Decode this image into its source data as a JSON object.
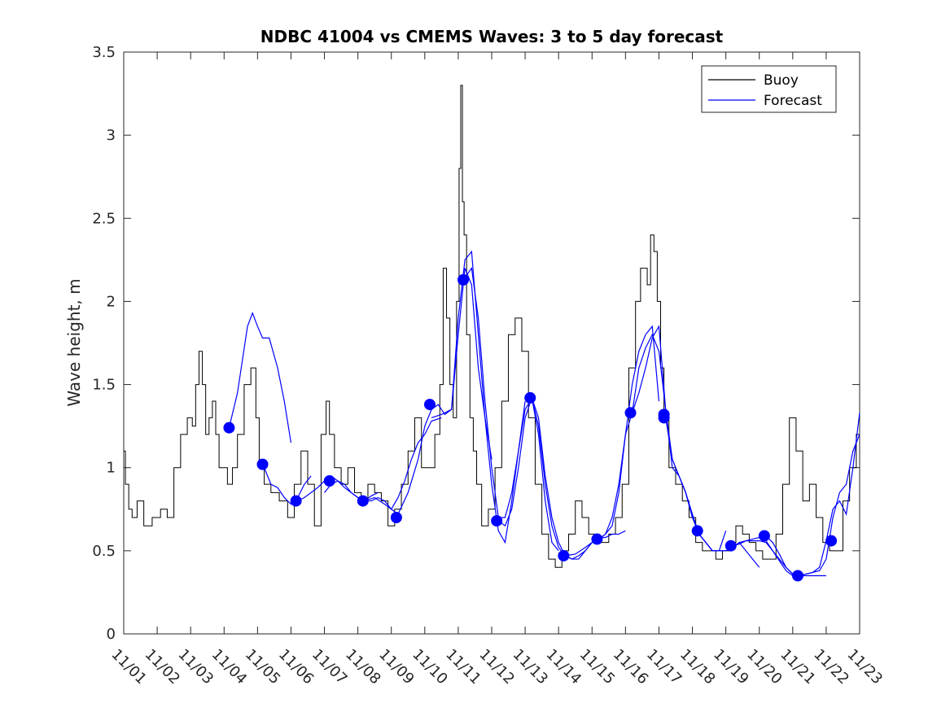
{
  "chart_data": {
    "type": "line",
    "title": "NDBC 41004 vs CMEMS Waves: 3 to 5 day forecast",
    "xlabel": "",
    "ylabel": "Wave height, m",
    "xlim": [
      "11/01",
      "11/23"
    ],
    "ylim": [
      0,
      3.5
    ],
    "x_tick_labels": [
      "11/01",
      "11/02",
      "11/03",
      "11/04",
      "11/05",
      "11/06",
      "11/07",
      "11/08",
      "11/09",
      "11/10",
      "11/11",
      "11/12",
      "11/13",
      "11/14",
      "11/15",
      "11/16",
      "11/17",
      "11/18",
      "11/19",
      "11/20",
      "11/21",
      "11/22",
      "11/23"
    ],
    "y_ticks": [
      0,
      0.5,
      1,
      1.5,
      2,
      2.5,
      3,
      3.5
    ],
    "y_tick_labels": [
      "0",
      "0.5",
      "1",
      "1.5",
      "2",
      "2.5",
      "3",
      "3.5"
    ],
    "grid": false,
    "legend": {
      "position": "top-right",
      "entries": [
        "Buoy",
        "Forecast"
      ]
    },
    "colors": {
      "buoy": "#000000",
      "forecast": "#0000ff",
      "markers": "#0000ff"
    },
    "series": [
      {
        "name": "Buoy",
        "x_unit": "day of month (Nov)",
        "x": [
          1.0,
          1.1,
          1.2,
          1.3,
          1.5,
          1.7,
          2.0,
          2.2,
          2.4,
          2.6,
          2.8,
          3.0,
          3.1,
          3.2,
          3.3,
          3.4,
          3.5,
          3.6,
          3.7,
          3.8,
          3.9,
          4.0,
          4.2,
          4.3,
          4.5,
          4.7,
          4.9,
          5.0,
          5.1,
          5.3,
          5.5,
          5.8,
          6.0,
          6.2,
          6.4,
          6.6,
          6.8,
          7.0,
          7.1,
          7.2,
          7.4,
          7.6,
          7.8,
          8.0,
          8.2,
          8.4,
          8.6,
          8.8,
          9.0,
          9.2,
          9.4,
          9.6,
          9.8,
          10.0,
          10.2,
          10.4,
          10.5,
          10.6,
          10.7,
          10.8,
          10.9,
          11.0,
          11.05,
          11.1,
          11.15,
          11.2,
          11.3,
          11.4,
          11.5,
          11.6,
          11.8,
          12.0,
          12.2,
          12.4,
          12.6,
          12.8,
          13.0,
          13.2,
          13.4,
          13.6,
          13.8,
          14.0,
          14.2,
          14.4,
          14.6,
          14.8,
          15.0,
          15.2,
          15.4,
          15.6,
          15.8,
          16.0,
          16.2,
          16.4,
          16.5,
          16.6,
          16.7,
          16.8,
          16.9,
          17.0,
          17.1,
          17.2,
          17.4,
          17.6,
          17.8,
          18.0,
          18.2,
          18.4,
          18.6,
          18.8,
          19.0,
          19.2,
          19.4,
          19.6,
          19.8,
          20.0,
          20.2,
          20.4,
          20.6,
          20.8,
          21.0,
          21.2,
          21.4,
          21.6,
          21.8,
          22.0,
          22.2,
          22.4,
          22.6,
          22.8,
          23.0
        ],
        "values": [
          1.1,
          0.9,
          0.75,
          0.7,
          0.8,
          0.65,
          0.7,
          0.75,
          0.7,
          1.0,
          1.2,
          1.3,
          1.25,
          1.5,
          1.7,
          1.5,
          1.2,
          1.3,
          1.4,
          1.2,
          1.0,
          1.0,
          0.9,
          1.0,
          1.2,
          1.5,
          1.6,
          1.3,
          1.0,
          0.9,
          0.85,
          0.8,
          0.7,
          0.9,
          1.1,
          0.9,
          0.65,
          1.2,
          1.4,
          1.2,
          1.0,
          0.9,
          1.0,
          0.85,
          0.8,
          0.9,
          0.85,
          0.8,
          0.65,
          0.75,
          0.9,
          1.1,
          1.3,
          1.0,
          1.0,
          1.2,
          1.5,
          2.2,
          1.9,
          1.5,
          1.3,
          2.0,
          2.8,
          3.3,
          2.6,
          2.4,
          1.8,
          1.3,
          1.1,
          0.9,
          0.65,
          0.75,
          1.0,
          1.4,
          1.8,
          1.9,
          1.7,
          1.3,
          0.9,
          0.6,
          0.45,
          0.4,
          0.5,
          0.6,
          0.8,
          0.7,
          0.6,
          0.55,
          0.55,
          0.6,
          0.7,
          0.9,
          1.6,
          2.0,
          2.2,
          2.2,
          2.1,
          2.4,
          2.3,
          2.0,
          1.6,
          1.3,
          1.0,
          0.9,
          0.8,
          0.7,
          0.55,
          0.5,
          0.5,
          0.45,
          0.5,
          0.55,
          0.65,
          0.6,
          0.55,
          0.5,
          0.45,
          0.45,
          0.6,
          0.9,
          1.3,
          1.1,
          0.8,
          0.9,
          0.7,
          0.55,
          0.5,
          0.5,
          0.8,
          1.0,
          1.2
        ]
      },
      {
        "name": "Forecast",
        "segments": [
          {
            "x": [
              4.15,
              4.4,
              4.7,
              4.85,
              5.0,
              5.15,
              5.35,
              5.6,
              5.8,
              6.0
            ],
            "values": [
              1.24,
              1.45,
              1.85,
              1.93,
              1.85,
              1.78,
              1.78,
              1.6,
              1.4,
              1.15
            ]
          },
          {
            "x": [
              5.2,
              5.4,
              5.6,
              5.8,
              6.0,
              6.15,
              6.4,
              6.6
            ],
            "values": [
              1.0,
              0.9,
              0.88,
              0.82,
              0.78,
              0.8,
              0.9,
              0.95
            ]
          },
          {
            "x": [
              6.2,
              6.4,
              6.6,
              6.8,
              7.0,
              7.2,
              7.4,
              7.6,
              7.8,
              8.0,
              8.2,
              8.4,
              8.6
            ],
            "values": [
              0.8,
              0.82,
              0.85,
              0.88,
              0.92,
              0.95,
              0.92,
              0.88,
              0.85,
              0.82,
              0.8,
              0.83,
              0.85
            ]
          },
          {
            "x": [
              7.0,
              7.2,
              7.4,
              7.6,
              7.8,
              8.0,
              8.2,
              8.4,
              8.6,
              8.8,
              9.0,
              9.2
            ],
            "values": [
              0.85,
              0.9,
              0.92,
              0.9,
              0.85,
              0.82,
              0.8,
              0.8,
              0.82,
              0.8,
              0.75,
              0.72
            ]
          },
          {
            "x": [
              8.2,
              8.5,
              8.8,
              9.0,
              9.2,
              9.4,
              9.6,
              9.8,
              10.0,
              10.2,
              10.5
            ],
            "values": [
              0.8,
              0.82,
              0.78,
              0.75,
              0.82,
              0.92,
              1.05,
              1.15,
              1.2,
              1.28,
              1.3
            ]
          },
          {
            "x": [
              9.2,
              9.5,
              9.8,
              10.0,
              10.2,
              10.4,
              10.6,
              10.8,
              11.0,
              11.2,
              11.4,
              11.6,
              11.8,
              12.0
            ],
            "values": [
              0.72,
              0.85,
              1.05,
              1.25,
              1.35,
              1.38,
              1.32,
              1.35,
              1.8,
              2.2,
              2.1,
              1.6,
              1.3,
              1.05
            ]
          },
          {
            "x": [
              10.2,
              10.5,
              10.8,
              11.0,
              11.2,
              11.4,
              11.6,
              11.8,
              12.0,
              12.2,
              12.4,
              12.6,
              12.8,
              13.0
            ],
            "values": [
              1.3,
              1.32,
              1.35,
              1.9,
              2.25,
              2.3,
              1.8,
              1.3,
              0.9,
              0.62,
              0.55,
              0.8,
              1.1,
              1.4
            ]
          },
          {
            "x": [
              11.15,
              11.4,
              11.6,
              11.8,
              12.0,
              12.2,
              12.4,
              12.6,
              12.8,
              13.0,
              13.2,
              13.4,
              13.6,
              13.8,
              14.0
            ],
            "values": [
              2.13,
              2.2,
              1.9,
              1.4,
              1.0,
              0.7,
              0.7,
              0.85,
              1.1,
              1.35,
              1.42,
              1.2,
              0.8,
              0.55,
              0.5
            ]
          },
          {
            "x": [
              12.2,
              12.4,
              12.6,
              12.8,
              13.0,
              13.2,
              13.4,
              13.6,
              13.8,
              14.0,
              14.2,
              14.4,
              14.6,
              14.8,
              15.0
            ],
            "values": [
              0.68,
              0.65,
              0.75,
              1.0,
              1.3,
              1.42,
              1.25,
              0.9,
              0.65,
              0.52,
              0.47,
              0.45,
              0.47,
              0.5,
              0.55
            ]
          },
          {
            "x": [
              13.2,
              13.4,
              13.6,
              13.8,
              14.0,
              14.2,
              14.4,
              14.6,
              14.8,
              15.0,
              15.2,
              15.4,
              15.6,
              15.8,
              16.0
            ],
            "values": [
              1.42,
              1.3,
              0.95,
              0.7,
              0.55,
              0.47,
              0.45,
              0.45,
              0.5,
              0.55,
              0.58,
              0.58,
              0.6,
              0.6,
              0.62
            ]
          },
          {
            "x": [
              14.2,
              14.5,
              14.8,
              15.0,
              15.2,
              15.4,
              15.6,
              15.8,
              16.0,
              16.2,
              16.4,
              16.6,
              16.8,
              17.0
            ],
            "values": [
              0.47,
              0.48,
              0.52,
              0.55,
              0.57,
              0.6,
              0.65,
              0.85,
              1.2,
              1.5,
              1.7,
              1.8,
              1.85,
              1.4
            ]
          },
          {
            "x": [
              15.2,
              15.4,
              15.6,
              15.8,
              16.0,
              16.2,
              16.4,
              16.6,
              16.8,
              17.0,
              17.2,
              17.4,
              17.6,
              17.8,
              18.0
            ],
            "values": [
              0.57,
              0.6,
              0.7,
              0.9,
              1.2,
              1.33,
              1.45,
              1.6,
              1.78,
              1.85,
              1.35,
              1.0,
              0.95,
              0.85,
              0.7
            ]
          },
          {
            "x": [
              16.2,
              16.4,
              16.6,
              16.8,
              17.0,
              17.2,
              17.4,
              17.6,
              17.8,
              18.0,
              18.2,
              18.4,
              18.6,
              18.8,
              19.0
            ],
            "values": [
              1.33,
              1.6,
              1.72,
              1.8,
              1.7,
              1.35,
              1.05,
              0.95,
              0.85,
              0.72,
              0.6,
              0.55,
              0.5,
              0.5,
              0.62
            ]
          },
          {
            "x": [
              17.2,
              17.4,
              17.6,
              17.8,
              18.0,
              18.2,
              18.4,
              18.6,
              18.8,
              19.0,
              19.2,
              19.4,
              19.6,
              19.8,
              20.0
            ],
            "values": [
              1.3,
              1.05,
              0.95,
              0.85,
              0.7,
              0.6,
              0.55,
              0.5,
              0.5,
              0.5,
              0.52,
              0.55,
              0.5,
              0.45,
              0.4
            ]
          },
          {
            "x": [
              18.2,
              18.4,
              18.6,
              18.8,
              19.0,
              19.2,
              19.4,
              19.6,
              19.8,
              20.0,
              20.2,
              20.4,
              20.6,
              20.8,
              21.0
            ],
            "values": [
              0.6,
              0.55,
              0.5,
              0.5,
              0.5,
              0.52,
              0.55,
              0.56,
              0.56,
              0.56,
              0.55,
              0.5,
              0.45,
              0.4,
              0.36
            ]
          },
          {
            "x": [
              19.2,
              19.4,
              19.6,
              19.8,
              20.0,
              20.2,
              20.4,
              20.6,
              20.8,
              21.0,
              21.2,
              21.4,
              21.6,
              21.8,
              22.0
            ],
            "values": [
              0.53,
              0.54,
              0.56,
              0.57,
              0.58,
              0.56,
              0.5,
              0.44,
              0.38,
              0.35,
              0.35,
              0.35,
              0.35,
              0.35,
              0.35
            ]
          },
          {
            "x": [
              20.2,
              20.4,
              20.6,
              20.8,
              21.0,
              21.2,
              21.4,
              21.6,
              21.8,
              22.0,
              22.2,
              22.4,
              22.6,
              22.8,
              23.0
            ],
            "values": [
              0.59,
              0.55,
              0.48,
              0.4,
              0.36,
              0.35,
              0.36,
              0.37,
              0.38,
              0.45,
              0.7,
              0.85,
              0.9,
              1.1,
              1.2
            ]
          },
          {
            "x": [
              21.2,
              21.4,
              21.6,
              21.8,
              22.0,
              22.2,
              22.4,
              22.6,
              22.8,
              23.0
            ],
            "values": [
              0.35,
              0.36,
              0.37,
              0.4,
              0.56,
              0.75,
              0.8,
              0.72,
              1.0,
              1.33
            ]
          }
        ]
      }
    ],
    "markers": {
      "x": [
        4.15,
        5.15,
        6.15,
        7.15,
        8.15,
        9.15,
        10.15,
        11.15,
        12.15,
        13.15,
        14.15,
        15.15,
        16.15,
        17.15,
        17.15,
        18.15,
        19.15,
        20.15,
        21.15,
        22.15
      ],
      "values": [
        1.24,
        1.02,
        0.8,
        0.92,
        0.8,
        0.7,
        1.38,
        2.13,
        0.68,
        1.42,
        0.47,
        0.57,
        1.33,
        1.32,
        1.3,
        0.62,
        0.53,
        0.59,
        0.35,
        0.56
      ]
    }
  }
}
